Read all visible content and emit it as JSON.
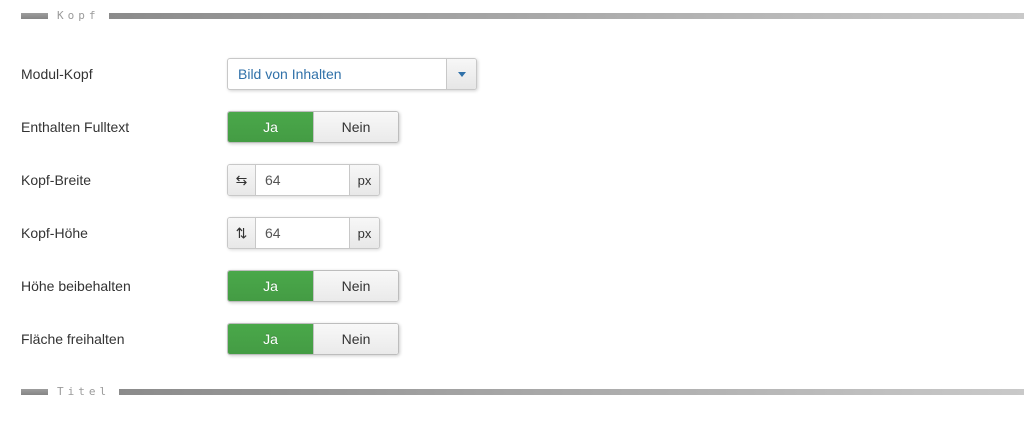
{
  "sections": {
    "kopf": {
      "legend": "Kopf"
    },
    "titel": {
      "legend": "Titel"
    }
  },
  "form": {
    "rows": [
      {
        "label": "Modul-Kopf",
        "control": "select",
        "value": "Bild von Inhalten"
      },
      {
        "label": "Enthalten Fulltext",
        "control": "toggle",
        "options": [
          "Ja",
          "Nein"
        ],
        "selected": "Ja"
      },
      {
        "label": "Kopf-Breite",
        "control": "number-input",
        "icon": "resize-horizontal-icon",
        "value": "64",
        "unit": "px"
      },
      {
        "label": "Kopf-Höhe",
        "control": "number-input",
        "icon": "resize-vertical-icon",
        "value": "64",
        "unit": "px"
      },
      {
        "label": "Höhe beibehalten",
        "control": "toggle",
        "options": [
          "Ja",
          "Nein"
        ],
        "selected": "Ja"
      },
      {
        "label": "Fläche freihalten",
        "control": "toggle",
        "options": [
          "Ja",
          "Nein"
        ],
        "selected": "Ja"
      }
    ]
  },
  "icons": {
    "resize_horizontal": "⇆",
    "resize_vertical": "⇅"
  },
  "colors": {
    "toggle_on_green": "#46a546",
    "select_text_blue": "#3071a9",
    "legend_gray": "#9a9a9a"
  }
}
